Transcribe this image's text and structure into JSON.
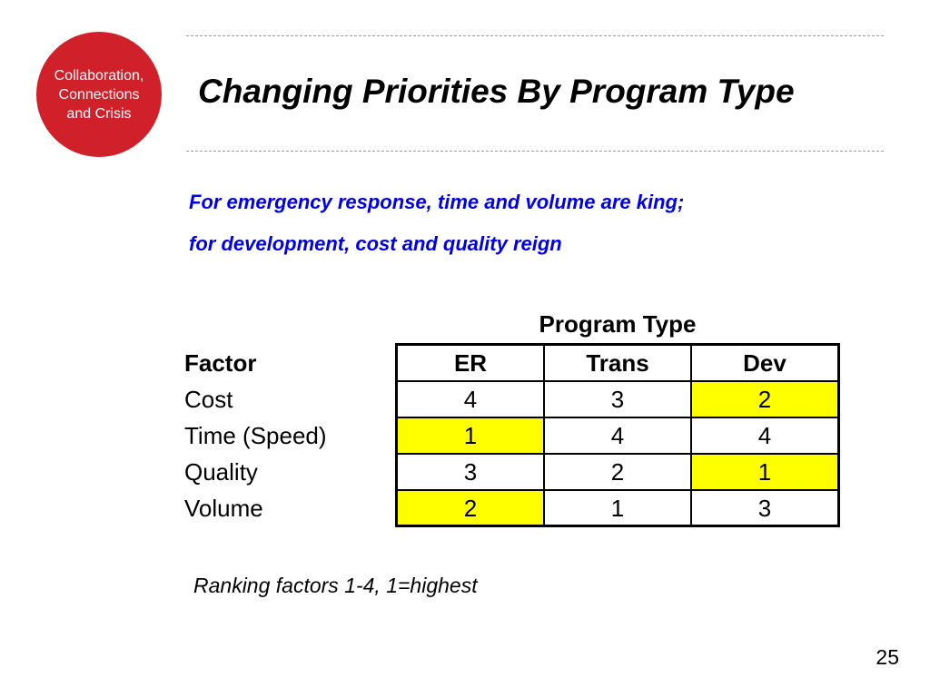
{
  "logo": {
    "lines": [
      "Collaboration,",
      "Connections",
      "and Crisis"
    ],
    "color": "#d0202a"
  },
  "title": "Changing Priorities By Program Type",
  "subtitle": {
    "line1": "For emergency response, time and volume are king;",
    "line2": "for development, cost and quality reign",
    "color": "#0000e6"
  },
  "table": {
    "group_header": "Program Type",
    "factor_header": "Factor",
    "columns": [
      "ER",
      "Trans",
      "Dev"
    ],
    "highlight_color": "#ffff00",
    "rows": [
      {
        "factor": "Cost",
        "values": [
          "4",
          "3",
          "2"
        ],
        "highlighted": [
          false,
          false,
          true
        ]
      },
      {
        "factor": "Time (Speed)",
        "values": [
          "1",
          "4",
          "4"
        ],
        "highlighted": [
          true,
          false,
          false
        ]
      },
      {
        "factor": "Quality",
        "values": [
          "3",
          "2",
          "1"
        ],
        "highlighted": [
          false,
          false,
          true
        ]
      },
      {
        "factor": "Volume",
        "values": [
          "2",
          "1",
          "3"
        ],
        "highlighted": [
          true,
          false,
          false
        ]
      }
    ]
  },
  "note": "Ranking factors 1-4, 1=highest",
  "page_number": "25"
}
